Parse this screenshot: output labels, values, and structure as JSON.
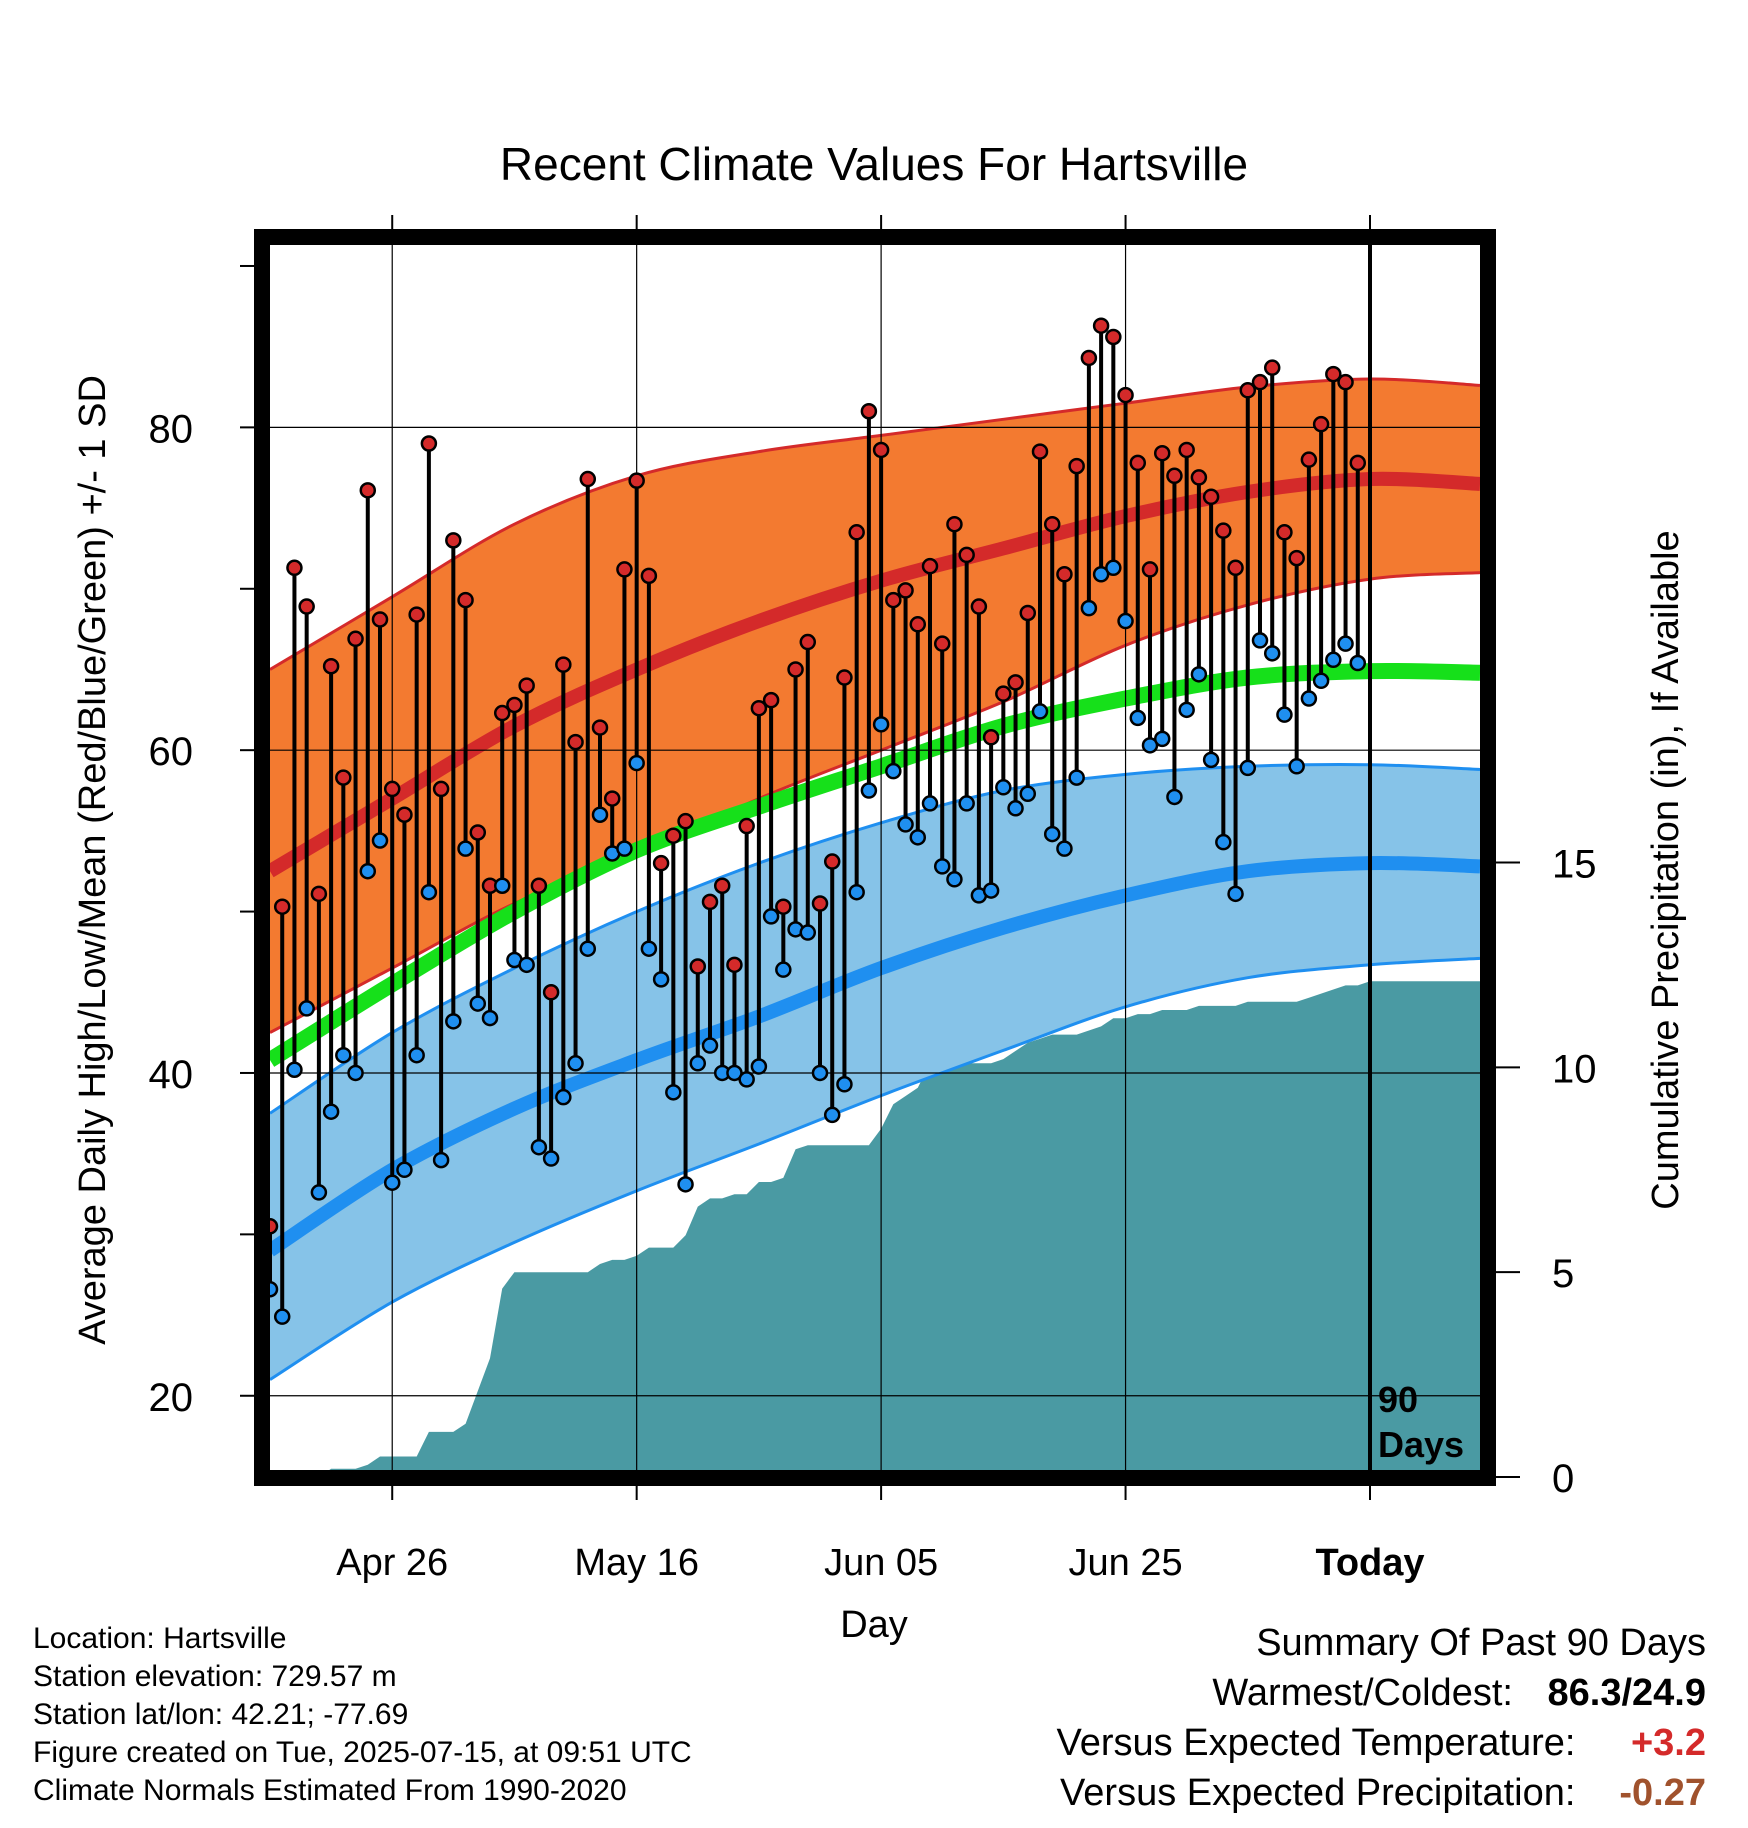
{
  "chart_data": {
    "type": "line",
    "title": "Recent Climate Values For Hartsville",
    "xlabel": "Day",
    "ylabel_left": "Average Daily High/Low/Mean (Red/Blue/Green) +/- 1 SD",
    "ylabel_right": "Cumulative Precipitation (in), If Available",
    "x_tick_labels": [
      "Apr 26",
      "May 16",
      "Jun 05",
      "Jun 25",
      "Today"
    ],
    "x_tick_days": [
      10,
      30,
      50,
      70,
      90
    ],
    "xlim_days": [
      0,
      99
    ],
    "ylim_temp": [
      15.4,
      91.3
    ],
    "y_ticks_temp": [
      20,
      40,
      60,
      80
    ],
    "ylim_precip": [
      0,
      30
    ],
    "y_ticks_precip": [
      0,
      5,
      10,
      15
    ],
    "grid": true,
    "today_marker": {
      "day": 90,
      "label_line1": "90",
      "label_line2": "Days"
    },
    "normals": {
      "days": [
        0,
        10,
        20,
        30,
        40,
        50,
        60,
        70,
        80,
        90,
        99
      ],
      "high_mean": [
        52.5,
        57.0,
        61.5,
        65.0,
        68.0,
        70.5,
        72.5,
        74.5,
        76.0,
        76.8,
        76.5
      ],
      "high_upper": [
        65.0,
        69.5,
        74.0,
        77.0,
        78.5,
        79.5,
        80.5,
        81.5,
        82.5,
        83.0,
        82.6
      ],
      "high_lower": [
        42.5,
        46.5,
        50.5,
        53.5,
        57.0,
        60.0,
        63.0,
        66.5,
        69.0,
        70.6,
        71.0
      ],
      "mean": [
        40.8,
        45.5,
        50.0,
        53.8,
        56.5,
        59.0,
        61.5,
        63.2,
        64.5,
        64.9,
        64.8
      ],
      "low_mean": [
        29.0,
        34.0,
        37.8,
        40.8,
        43.5,
        46.5,
        49.0,
        51.0,
        52.5,
        53.0,
        52.8
      ],
      "low_upper": [
        37.5,
        42.5,
        46.5,
        50.0,
        53.0,
        55.5,
        57.5,
        58.5,
        59.0,
        59.1,
        58.8
      ],
      "low_lower": [
        21.0,
        25.8,
        29.5,
        32.7,
        35.6,
        38.6,
        41.4,
        44.1,
        45.9,
        46.7,
        47.1
      ]
    },
    "observed": {
      "days": [
        0,
        1,
        2,
        3,
        4,
        5,
        6,
        7,
        8,
        9,
        10,
        11,
        12,
        13,
        14,
        15,
        16,
        17,
        18,
        19,
        20,
        21,
        22,
        23,
        24,
        25,
        26,
        27,
        28,
        29,
        30,
        31,
        32,
        33,
        34,
        35,
        36,
        37,
        38,
        39,
        40,
        41,
        42,
        43,
        44,
        45,
        46,
        47,
        48,
        49,
        50,
        51,
        52,
        53,
        54,
        55,
        56,
        57,
        58,
        59,
        60,
        61,
        62,
        63,
        64,
        65,
        66,
        67,
        68,
        69,
        70,
        71,
        72,
        73,
        74,
        75,
        76,
        77,
        78,
        79,
        80,
        81,
        82,
        83,
        84,
        85,
        86,
        87,
        88,
        89
      ],
      "high": [
        30.5,
        50.3,
        71.3,
        68.9,
        51.1,
        65.2,
        58.3,
        66.9,
        76.1,
        68.1,
        57.6,
        56.0,
        68.4,
        79.0,
        57.6,
        73.0,
        69.3,
        54.9,
        51.6,
        62.3,
        62.8,
        64.0,
        51.6,
        45.0,
        65.3,
        60.5,
        76.8,
        61.4,
        57.0,
        71.2,
        76.7,
        70.8,
        53.0,
        54.7,
        55.6,
        46.6,
        50.6,
        51.6,
        46.7,
        55.3,
        62.6,
        63.1,
        50.3,
        65.0,
        66.7,
        50.5,
        53.1,
        64.5,
        73.5,
        81.0,
        78.6,
        69.3,
        69.9,
        67.8,
        71.4,
        66.6,
        74.0,
        72.1,
        68.9,
        60.8,
        63.5,
        64.2,
        68.5,
        78.5,
        74.0,
        70.9,
        77.6,
        84.3,
        86.3,
        85.6,
        82.0,
        77.8,
        71.2,
        78.4,
        77.0,
        78.6,
        76.9,
        75.7,
        73.6,
        71.3,
        82.3,
        82.8,
        83.7,
        73.5,
        71.9,
        78.0,
        80.2,
        83.3,
        82.8,
        77.8
      ],
      "low": [
        26.6,
        24.9,
        40.2,
        44.0,
        32.6,
        37.6,
        41.1,
        40.0,
        52.5,
        54.4,
        33.2,
        34.0,
        41.1,
        51.2,
        34.6,
        43.2,
        53.9,
        44.3,
        43.4,
        51.6,
        47.0,
        46.7,
        35.4,
        34.7,
        38.5,
        40.6,
        47.7,
        56.0,
        53.6,
        53.9,
        59.2,
        47.7,
        45.8,
        38.8,
        33.1,
        40.6,
        41.7,
        40.0,
        40.0,
        39.6,
        40.4,
        49.7,
        46.4,
        48.9,
        48.7,
        40.0,
        37.4,
        39.3,
        51.2,
        57.5,
        61.6,
        58.7,
        55.4,
        54.6,
        56.7,
        52.8,
        52.0,
        56.7,
        51.0,
        51.3,
        57.7,
        56.4,
        57.3,
        62.4,
        54.8,
        53.9,
        58.3,
        68.8,
        70.9,
        71.3,
        68.0,
        62.0,
        60.3,
        60.7,
        57.1,
        62.5,
        64.7,
        59.4,
        54.3,
        51.1,
        58.9,
        66.8,
        66.0,
        62.2,
        59.0,
        63.2,
        64.3,
        65.6,
        66.6,
        65.4
      ]
    },
    "cumulative_precip": {
      "days": [
        0,
        4,
        5,
        7,
        8,
        9,
        10,
        11,
        12,
        13,
        14,
        15,
        16,
        17,
        18,
        19,
        20,
        21,
        22,
        23,
        24,
        25,
        26,
        27,
        28,
        29,
        30,
        31,
        32,
        33,
        34,
        35,
        36,
        37,
        38,
        39,
        40,
        41,
        42,
        43,
        44,
        45,
        46,
        47,
        48,
        49,
        50,
        51,
        52,
        53,
        54,
        55,
        56,
        57,
        58,
        59,
        60,
        61,
        62,
        63,
        64,
        65,
        66,
        67,
        68,
        69,
        70,
        71,
        72,
        73,
        74,
        75,
        76,
        77,
        78,
        79,
        80,
        81,
        82,
        83,
        84,
        85,
        86,
        87,
        88,
        89,
        90,
        99
      ],
      "values": [
        0.0,
        0.0,
        0.2,
        0.2,
        0.3,
        0.5,
        0.5,
        0.5,
        0.5,
        1.1,
        1.1,
        1.1,
        1.3,
        2.1,
        2.9,
        4.6,
        5.0,
        5.0,
        5.0,
        5.0,
        5.0,
        5.0,
        5.0,
        5.2,
        5.3,
        5.3,
        5.4,
        5.6,
        5.6,
        5.6,
        5.9,
        6.6,
        6.8,
        6.8,
        6.9,
        6.9,
        7.2,
        7.2,
        7.3,
        8.0,
        8.1,
        8.1,
        8.1,
        8.1,
        8.1,
        8.1,
        8.5,
        9.1,
        9.3,
        9.5,
        10.1,
        10.1,
        10.1,
        10.1,
        10.1,
        10.1,
        10.2,
        10.4,
        10.6,
        10.7,
        10.8,
        10.8,
        10.8,
        10.9,
        11.0,
        11.2,
        11.2,
        11.3,
        11.3,
        11.4,
        11.4,
        11.4,
        11.5,
        11.5,
        11.5,
        11.5,
        11.6,
        11.6,
        11.6,
        11.6,
        11.6,
        11.7,
        11.8,
        11.9,
        12.0,
        12.0,
        12.1,
        12.1
      ]
    },
    "colors": {
      "high_band": "#f37a30",
      "high_line": "#d42a2a",
      "high_band_edge": "#d42a2a",
      "mean_line": "#16e01a",
      "low_band": "#86c3e8",
      "low_line": "#1f8ff0",
      "low_band_edge": "#1f8ff0",
      "precip": "#4a9aa3",
      "high_dot": "#d42a2a",
      "low_dot": "#1f8ff0"
    }
  },
  "info": {
    "location": "Location: Hartsville",
    "elevation": "Station elevation: 729.57 m",
    "latlon": "Station lat/lon: 42.21; -77.69",
    "created": "Figure created on Tue, 2025-07-15, at 09:51 UTC",
    "normals": "Climate Normals Estimated From 1990-2020"
  },
  "summary": {
    "title": "Summary Of Past 90 Days",
    "warm_cold_label": "Warmest/Coldest:",
    "warm_cold_value": "86.3/24.9",
    "temp_label": "Versus Expected Temperature:",
    "temp_value": "+3.2",
    "temp_color": "#d42a2a",
    "precip_label": "Versus Expected Precipitation:",
    "precip_value": "-0.27",
    "precip_color": "#a0522d"
  }
}
